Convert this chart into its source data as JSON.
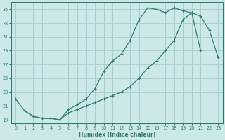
{
  "xlabel": "Humidex (Indice chaleur)",
  "bg_color": "#cce8e8",
  "grid_color": "#aacece",
  "line_color": "#2e7d6e",
  "xlim": [
    -0.5,
    23.5
  ],
  "ylim": [
    18.5,
    36.0
  ],
  "xticks": [
    0,
    1,
    2,
    3,
    4,
    5,
    6,
    7,
    8,
    9,
    10,
    11,
    12,
    13,
    14,
    15,
    16,
    17,
    18,
    19,
    20,
    21,
    22,
    23
  ],
  "yticks": [
    19,
    21,
    23,
    25,
    27,
    29,
    31,
    33,
    35
  ],
  "line1_x": [
    0,
    1,
    2,
    3,
    4,
    5,
    6,
    7,
    8,
    9,
    10,
    11,
    12,
    13,
    14,
    15,
    16,
    17,
    18,
    19,
    20,
    21
  ],
  "line1_y": [
    22.0,
    20.3,
    19.5,
    19.2,
    19.2,
    19.0,
    20.5,
    21.2,
    22.0,
    23.5,
    26.0,
    27.5,
    28.5,
    30.5,
    33.5,
    35.2,
    35.0,
    34.5,
    35.2,
    34.8,
    34.5,
    29.0
  ],
  "line2_x": [
    1,
    2,
    3,
    4,
    5,
    6,
    7,
    8,
    9,
    10,
    11,
    12,
    13,
    14,
    15,
    16,
    17,
    18,
    19,
    20,
    21,
    22,
    23
  ],
  "line2_y": [
    20.3,
    19.5,
    19.2,
    19.2,
    19.0,
    20.0,
    20.5,
    21.0,
    21.5,
    22.0,
    22.5,
    23.0,
    23.8,
    25.0,
    26.5,
    27.5,
    29.0,
    30.5,
    33.5,
    34.5,
    34.0,
    32.0,
    28.0
  ]
}
